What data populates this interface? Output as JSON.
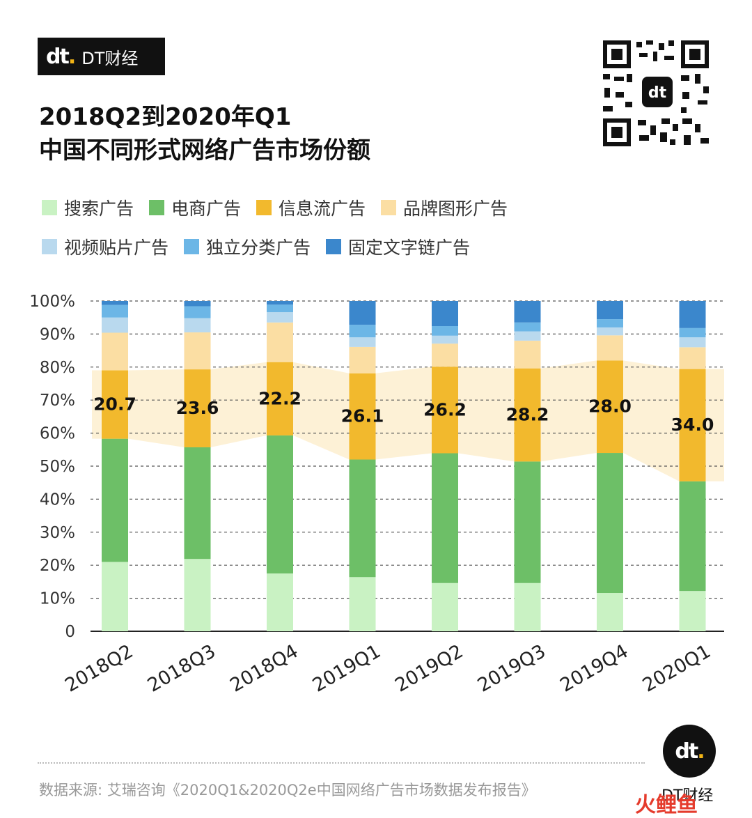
{
  "brand": {
    "logo_mark": "dt",
    "name": "DT财经"
  },
  "title": {
    "line1": "2018Q2到2020年Q1",
    "line2": "中国不同形式网络广告市场份额"
  },
  "source_text": "数据来源: 艾瑞咨询《2020Q1&2020Q2e中国网络广告市场数据发布报告》",
  "corner_brand": "DT财经",
  "watermark_text": "火鲤鱼",
  "colors": {
    "search": "#c9f2c3",
    "ecommerce": "#6dbf67",
    "feed": "#f2b92d",
    "brand_graphic": "#fbdea3",
    "video": "#b9d9ee",
    "classified": "#6cb6e6",
    "text_link": "#3b87cc",
    "band": "#fdf1d6"
  },
  "chart_data": {
    "type": "bar",
    "stacked": true,
    "categories": [
      "2018Q2",
      "2018Q3",
      "2018Q4",
      "2019Q1",
      "2019Q2",
      "2019Q3",
      "2019Q4",
      "2020Q1"
    ],
    "series": [
      {
        "name": "搜索广告",
        "color_key": "search",
        "values": [
          21.0,
          21.9,
          17.5,
          16.4,
          14.6,
          14.6,
          11.6,
          12.2
        ]
      },
      {
        "name": "电商广告",
        "color_key": "ecommerce",
        "values": [
          37.3,
          33.8,
          41.8,
          35.6,
          39.3,
          36.8,
          42.4,
          33.2
        ]
      },
      {
        "name": "信息流广告",
        "color_key": "feed",
        "values": [
          20.7,
          23.6,
          22.2,
          26.1,
          26.2,
          28.2,
          28.0,
          34.0
        ]
      },
      {
        "name": "品牌图形广告",
        "color_key": "brand_graphic",
        "values": [
          11.4,
          11.2,
          12.0,
          8.0,
          7.0,
          8.4,
          7.6,
          6.6
        ]
      },
      {
        "name": "视频贴片广告",
        "color_key": "video",
        "values": [
          4.6,
          4.3,
          3.1,
          2.9,
          2.4,
          2.8,
          2.4,
          3.0
        ]
      },
      {
        "name": "独立分类广告",
        "color_key": "classified",
        "values": [
          3.8,
          3.6,
          2.3,
          3.8,
          2.9,
          2.7,
          2.5,
          2.8
        ]
      },
      {
        "name": "固定文字链广告",
        "color_key": "text_link",
        "values": [
          1.2,
          1.6,
          1.1,
          7.2,
          7.6,
          6.5,
          5.5,
          8.2
        ]
      }
    ],
    "labeled_series": "信息流广告",
    "data_labels": [
      "20.7",
      "23.6",
      "22.2",
      "26.1",
      "26.2",
      "28.2",
      "28.0",
      "34.0"
    ],
    "y_ticks": [
      "0",
      "10%",
      "20%",
      "30%",
      "40%",
      "50%",
      "60%",
      "70%",
      "80%",
      "90%",
      "100%"
    ],
    "ylim": [
      0,
      100
    ],
    "legend_position": "top",
    "grid": true,
    "xlabel": "",
    "ylabel": ""
  }
}
